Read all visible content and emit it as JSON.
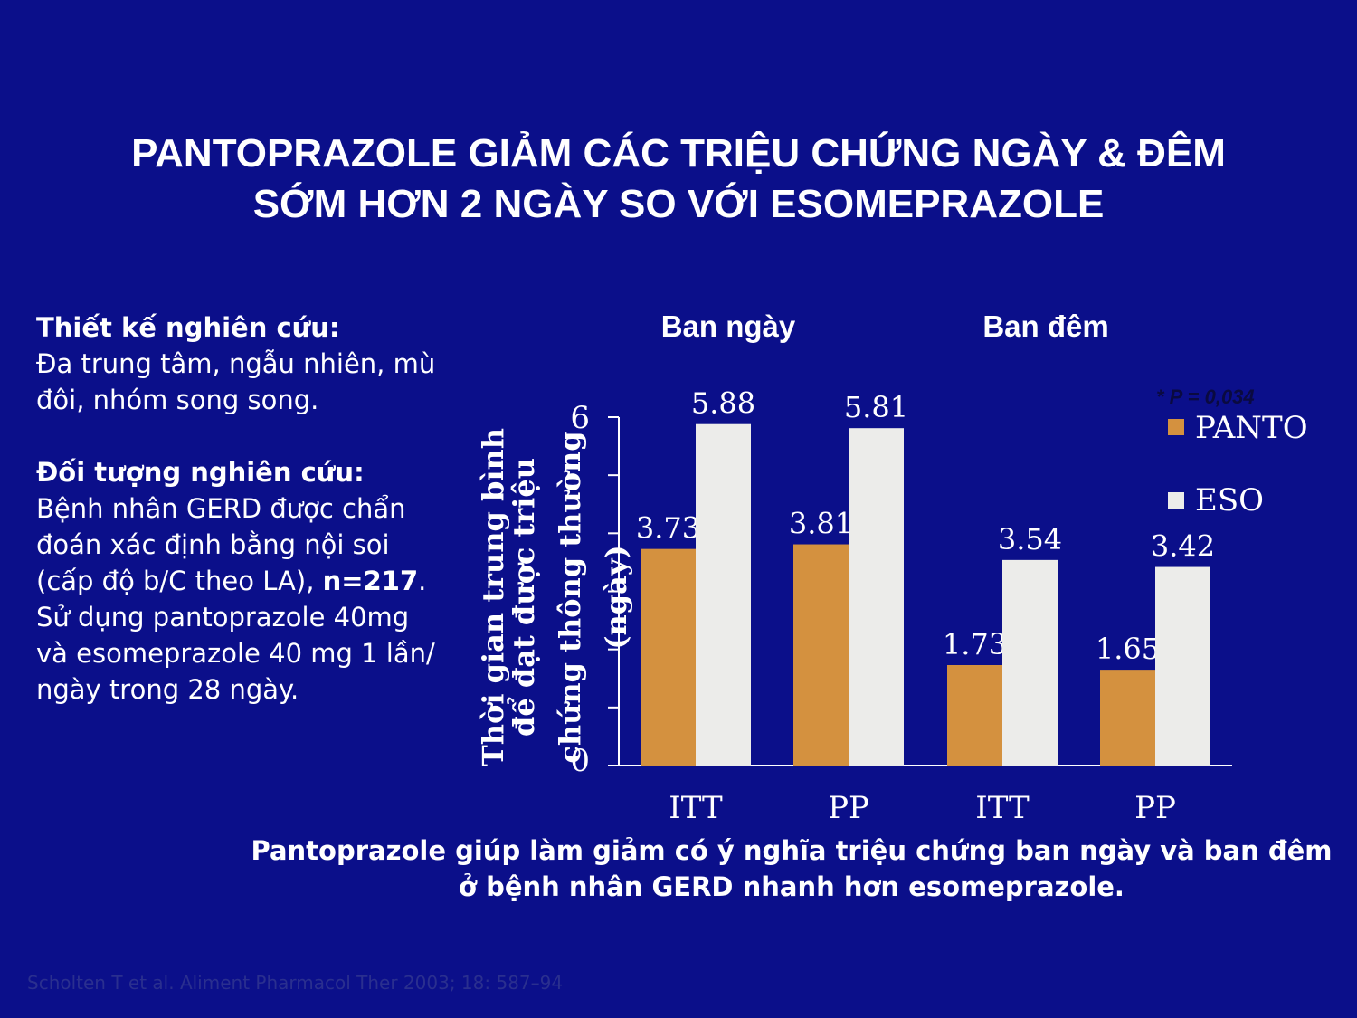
{
  "title": {
    "line1": "PANTOPRAZOLE GIẢM CÁC TRIỆU CHỨNG NGÀY & ĐÊM",
    "line2": "SỚM HƠN 2 NGÀY SO VỚI ESOMEPRAZOLE"
  },
  "left_panel": {
    "design_heading": "Thiết kế nghiên cứu:",
    "design_text": "Đa trung tâm, ngẫu nhiên, mù đôi, nhóm song song.",
    "subjects_heading": "Đối tượng nghiên cứu:",
    "subjects_text_a": "Bệnh nhân GERD được chẩn đoán xác định bằng nội soi (cấp độ b/C theo LA), ",
    "subjects_n": "n=217",
    "subjects_text_b": ". Sử dụng pantoprazole 40mg và esomeprazole 40 mg 1 lần/ ngày trong 28 ngày."
  },
  "conclusion": {
    "line1": "Pantoprazole giúp làm giảm có ý nghĩa triệu chứng  ban ngày và ban đêm",
    "line2": "ở bệnh nhân GERD nhanh hơn esomeprazole."
  },
  "citation": "Scholten T et al. Aliment Pharmacol Ther 2003; 18: 587–94",
  "colors": {
    "background": "#0b0f8a",
    "panto": "#d4913f",
    "eso": "#ececea"
  },
  "chart_data": {
    "type": "bar",
    "group_labels": [
      "Ban ngày",
      "Ban đêm"
    ],
    "categories": [
      "ITT",
      "PP",
      "ITT",
      "PP"
    ],
    "series": [
      {
        "name": "PANTO",
        "values": [
          3.73,
          3.81,
          1.73,
          1.65
        ],
        "labels": [
          "3.73",
          "3.81",
          "1.73",
          "1.65"
        ]
      },
      {
        "name": "ESO",
        "values": [
          5.88,
          5.81,
          3.54,
          3.42
        ],
        "labels": [
          "5.88",
          "5.81",
          "3.54",
          "3.42"
        ]
      }
    ],
    "ylabel_lines": [
      "Thời gian trung bình",
      "để đạt được triệu",
      "chứng thông thường",
      "(ngày)"
    ],
    "y_ticks": [
      "0",
      "6"
    ],
    "ylim": [
      0,
      6
    ],
    "annotation": "* P = 0,034",
    "legend_position": "top-right"
  }
}
